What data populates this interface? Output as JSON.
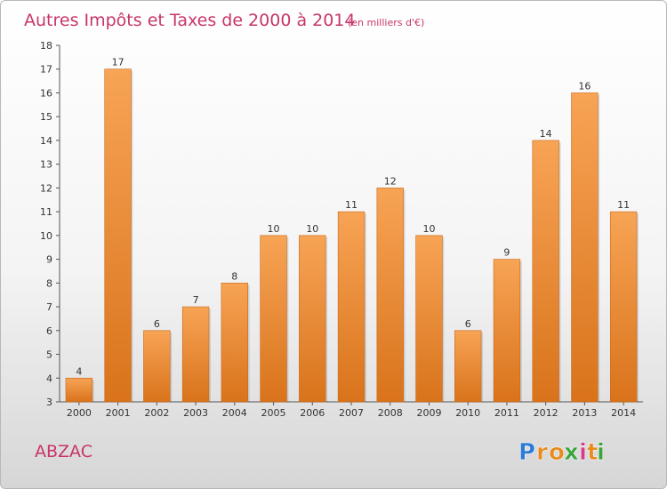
{
  "chart_data": {
    "type": "bar",
    "title": "Autres Impôts et Taxes de 2000 à 2014",
    "subtitle": "(en milliers d'€)",
    "categories": [
      "2000",
      "2001",
      "2002",
      "2003",
      "2004",
      "2005",
      "2006",
      "2007",
      "2008",
      "2009",
      "2010",
      "2011",
      "2012",
      "2013",
      "2014"
    ],
    "values": [
      4,
      17,
      6,
      7,
      8,
      10,
      10,
      11,
      12,
      10,
      6,
      9,
      14,
      16,
      11
    ],
    "data_labels": [
      "4",
      "17",
      "6",
      "7",
      "8",
      "10",
      "10",
      "11",
      "12",
      "10",
      "6",
      "9",
      "14",
      "16",
      "11"
    ],
    "ylim": [
      3,
      18
    ],
    "yticks": [
      3,
      4,
      5,
      6,
      7,
      8,
      9,
      10,
      11,
      12,
      13,
      14,
      15,
      16,
      17,
      18
    ],
    "ytick_labels": [
      "3",
      "4",
      "5",
      "6",
      "7",
      "8",
      "9",
      "10",
      "11",
      "12",
      "13",
      "14",
      "15",
      "16",
      "17",
      "18"
    ],
    "grid": false,
    "bar_color_top": "#f7a455",
    "bar_color_bottom": "#d9731b"
  },
  "commune": "ABZAC",
  "logo": {
    "letters": [
      "P",
      "r",
      "o",
      "x",
      "i",
      "t",
      "i"
    ],
    "colors": [
      "#2c7bd6",
      "#e88b1f",
      "#e88b1f",
      "#3aa33a",
      "#d33b8c",
      "#e88b1f",
      "#3aa33a"
    ]
  },
  "colors": {
    "title": "#c8356a",
    "axis": "#555555"
  }
}
